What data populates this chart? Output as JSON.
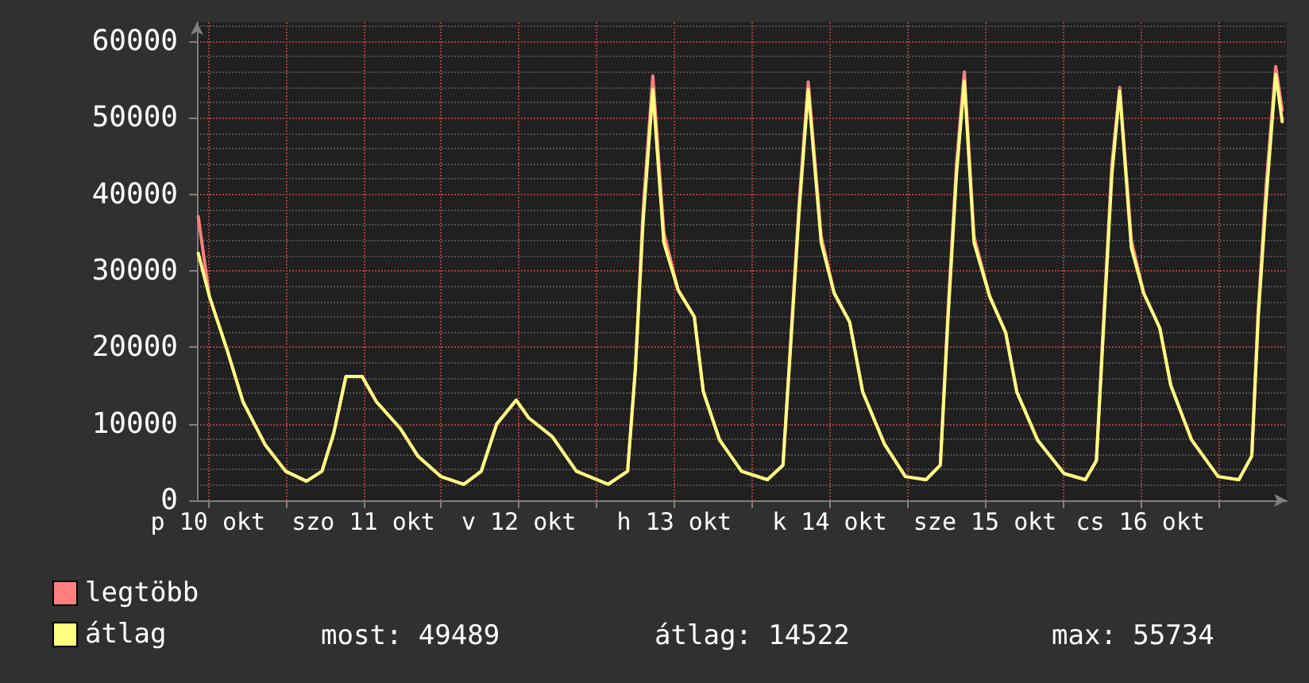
{
  "chart_data": {
    "type": "line",
    "x": [
      "--10-10T10:30",
      "--10-10T12:12",
      "--10-10T14:54",
      "--10-10T17:24",
      "--10-10T20:48",
      "--10-11T00:00",
      "--10-11T03:12",
      "--10-11T05:36",
      "--10-11T07:24",
      "--10-11T09:18",
      "--10-11T11:48",
      "--10-11T14:00",
      "--10-11T17:42",
      "--10-11T20:24",
      "--10-12T00:00",
      "--10-12T03:30",
      "--10-12T06:12",
      "--10-12T08:36",
      "--10-12T11:36",
      "--10-12T13:30",
      "--10-12T17:12",
      "--10-12T20:54",
      "--10-13T01:48",
      "--10-13T04:48",
      "--10-13T06:00",
      "--10-13T07:12",
      "--10-13T08:42",
      "--10-13T10:24",
      "--10-13T12:36",
      "--10-13T15:06",
      "--10-13T16:30",
      "--10-13T19:00",
      "--10-13T22:24",
      "--10-14T02:24",
      "--10-14T04:48",
      "--10-14T06:00",
      "--10-14T07:18",
      "--10-14T08:42",
      "--10-14T10:42",
      "--10-14T12:42",
      "--10-14T15:06",
      "--10-14T17:06",
      "--10-14T20:30",
      "--10-14T23:42",
      "--10-15T02:54",
      "--10-15T05:06",
      "--10-15T06:18",
      "--10-15T07:36",
      "--10-15T08:48",
      "--10-15T10:18",
      "--10-15T12:42",
      "--10-15T15:12",
      "--10-15T16:54",
      "--10-15T20:06",
      "--10-16T00:12",
      "--10-16T03:30",
      "--10-16T05:12",
      "--10-16T06:24",
      "--10-16T07:36",
      "--10-16T08:48",
      "--10-16T10:36",
      "--10-16T12:30",
      "--10-16T15:00",
      "--10-16T16:42",
      "--10-16T19:54",
      "--10-17T00:00",
      "--10-17T03:12",
      "--10-17T05:12",
      "--10-17T06:12",
      "--10-17T07:24",
      "--10-17T08:54",
      "--10-17T09:54"
    ],
    "series": [
      {
        "name": "legtöbb",
        "color": "#ff7f7f",
        "values": [
          37100,
          26700,
          19800,
          12900,
          7300,
          3800,
          2500,
          3800,
          8700,
          16200,
          16200,
          12900,
          9400,
          5800,
          3100,
          2100,
          3800,
          10000,
          13100,
          10800,
          8300,
          3800,
          2100,
          3800,
          17100,
          38000,
          55500,
          35000,
          27500,
          24000,
          14200,
          7900,
          3800,
          2700,
          4600,
          21000,
          39000,
          54700,
          34500,
          27100,
          23300,
          14200,
          7300,
          3100,
          2700,
          4600,
          25000,
          44000,
          56000,
          34500,
          26700,
          21900,
          14200,
          7900,
          3500,
          2700,
          5200,
          25000,
          44000,
          54000,
          34000,
          27100,
          22500,
          15000,
          7900,
          3100,
          2700,
          5800,
          25000,
          41000,
          56700,
          51000
        ]
      },
      {
        "name": "átlag",
        "color": "#ffff80",
        "values": [
          32300,
          26700,
          19800,
          12900,
          7300,
          3800,
          2500,
          3800,
          8700,
          16200,
          16200,
          12900,
          9400,
          5800,
          3100,
          2100,
          3800,
          10000,
          13100,
          10800,
          8300,
          3800,
          2100,
          3800,
          17100,
          36500,
          53700,
          33700,
          27500,
          24000,
          14200,
          7900,
          3800,
          2700,
          4600,
          20400,
          37900,
          53700,
          33700,
          27100,
          23300,
          14200,
          7300,
          3100,
          2700,
          4600,
          24000,
          42700,
          54800,
          33700,
          26700,
          21900,
          14200,
          7900,
          3500,
          2700,
          5200,
          24000,
          42700,
          53500,
          33000,
          27100,
          22500,
          15000,
          7900,
          3100,
          2700,
          5800,
          24000,
          39200,
          55700,
          49500
        ]
      }
    ],
    "xlim": [
      "--10-10T10:18",
      "--10-17T10:36"
    ],
    "xticks": [
      {
        "value": "--10-10T12:00",
        "label": "p 10 okt"
      },
      {
        "value": "--10-11T00:00",
        "label": null
      },
      {
        "value": "--10-11T12:00",
        "label": "szo 11 okt"
      },
      {
        "value": "--10-12T00:00",
        "label": null
      },
      {
        "value": "--10-12T12:00",
        "label": "v 12 okt"
      },
      {
        "value": "--10-13T00:00",
        "label": null
      },
      {
        "value": "--10-13T12:00",
        "label": "h 13 okt"
      },
      {
        "value": "--10-14T00:00",
        "label": null
      },
      {
        "value": "--10-14T12:00",
        "label": "k 14 okt"
      },
      {
        "value": "--10-15T00:00",
        "label": null
      },
      {
        "value": "--10-15T12:00",
        "label": "sze 15 okt"
      },
      {
        "value": "--10-16T00:00",
        "label": null
      },
      {
        "value": "--10-16T12:00",
        "label": "cs 16 okt"
      },
      {
        "value": "--10-17T00:00",
        "label": null
      }
    ],
    "ylim": [
      0,
      62500
    ],
    "yticks": [
      0,
      10000,
      20000,
      30000,
      40000,
      50000,
      60000
    ],
    "grid": true,
    "legend": "bottom left",
    "marker": "none",
    "line_style": "solid",
    "annotations": [
      "most: 49489",
      "átlag: 14522",
      "max: 55734"
    ]
  }
}
